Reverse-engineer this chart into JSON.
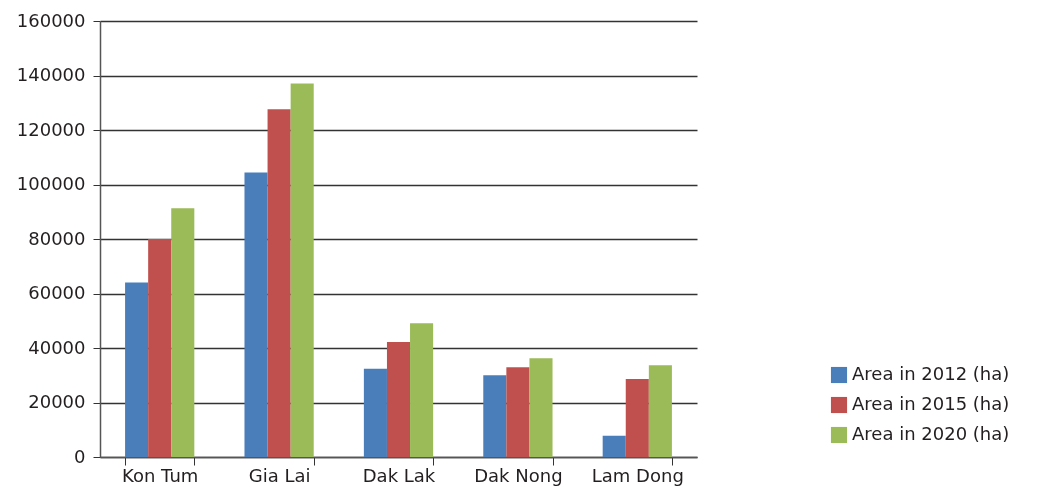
{
  "chart_data": {
    "type": "bar",
    "categories": [
      "Kon Tum",
      "Gia Lai",
      "Dak Lak",
      "Dak Nong",
      "Lam Dong"
    ],
    "series": [
      {
        "name": "Area in 2012 (ha)",
        "color": "#4a7ebb",
        "values": [
          64000,
          104400,
          32400,
          30000,
          7800
        ]
      },
      {
        "name": "Area in 2015 (ha)",
        "color": "#c0504d",
        "values": [
          80000,
          127600,
          42200,
          32900,
          28600
        ]
      },
      {
        "name": "Area in 2020 (ha)",
        "color": "#9bbb59",
        "values": [
          91300,
          137100,
          49100,
          36200,
          33700
        ]
      }
    ],
    "ylim": [
      0,
      160000
    ],
    "yticks": [
      0,
      20000,
      40000,
      60000,
      80000,
      100000,
      120000,
      140000,
      160000
    ],
    "grid": "y",
    "legend": "right"
  }
}
